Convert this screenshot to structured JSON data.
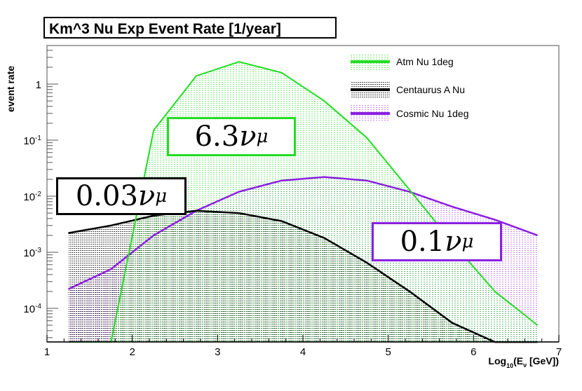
{
  "chart_data": {
    "type": "area",
    "title": "Km^3 Nu Exp Event Rate [1/year]",
    "xlabel": "Log10(Eν [GeV])",
    "xlabel_parts": {
      "pre": "Log",
      "sub": "10",
      "mid": "(E",
      "nu": "ν",
      "post": " [GeV])"
    },
    "ylabel": "event rate",
    "xlim": [
      1,
      7
    ],
    "ylim": [
      2.5e-05,
      4.9
    ],
    "yscale": "log",
    "xticks": [
      "1",
      "2",
      "3",
      "4",
      "5",
      "6",
      "7"
    ],
    "yticks": [
      {
        "v": 1,
        "base": "1",
        "exp": ""
      },
      {
        "v": 0.1,
        "base": "10",
        "exp": "-1"
      },
      {
        "v": 0.01,
        "base": "10",
        "exp": "-2"
      },
      {
        "v": 0.001,
        "base": "10",
        "exp": "-3"
      },
      {
        "v": 0.0001,
        "base": "10",
        "exp": "-4"
      }
    ],
    "legend_position": "top-right",
    "x": [
      1.25,
      1.75,
      2.25,
      2.75,
      3.25,
      3.75,
      4.25,
      4.75,
      5.25,
      5.75,
      6.25,
      6.75
    ],
    "series": [
      {
        "name": "Cosmic Nu 1deg",
        "color": "#8a1fe0",
        "values": [
          0.00022,
          0.0005,
          0.002,
          0.0055,
          0.012,
          0.019,
          0.022,
          0.019,
          0.012,
          0.0065,
          0.0038,
          0.002
        ]
      },
      {
        "name": "Centaurus A Nu",
        "color": "#000000",
        "values": [
          0.0022,
          0.003,
          0.0045,
          0.0055,
          0.005,
          0.0036,
          0.0018,
          0.00065,
          0.0002,
          5.5e-05,
          2.5e-05,
          2.5e-05
        ]
      },
      {
        "name": "Atm Nu 1deg",
        "color": "#22dd22",
        "values": [
          2.5e-05,
          2.5e-05,
          0.15,
          1.4,
          2.5,
          1.6,
          0.5,
          0.11,
          0.013,
          0.0015,
          0.0002,
          5e-05
        ]
      }
    ],
    "annotations": [
      {
        "id": "atm",
        "num": "6.3",
        "nu": "ν",
        "sub": "μ",
        "color": "#22dd22"
      },
      {
        "id": "cen",
        "num": "0.03",
        "nu": "ν",
        "sub": "μ",
        "color": "#000000"
      },
      {
        "id": "cos",
        "num": "0.1",
        "nu": "ν",
        "sub": "μ",
        "color": "#8a1fe0"
      }
    ]
  }
}
